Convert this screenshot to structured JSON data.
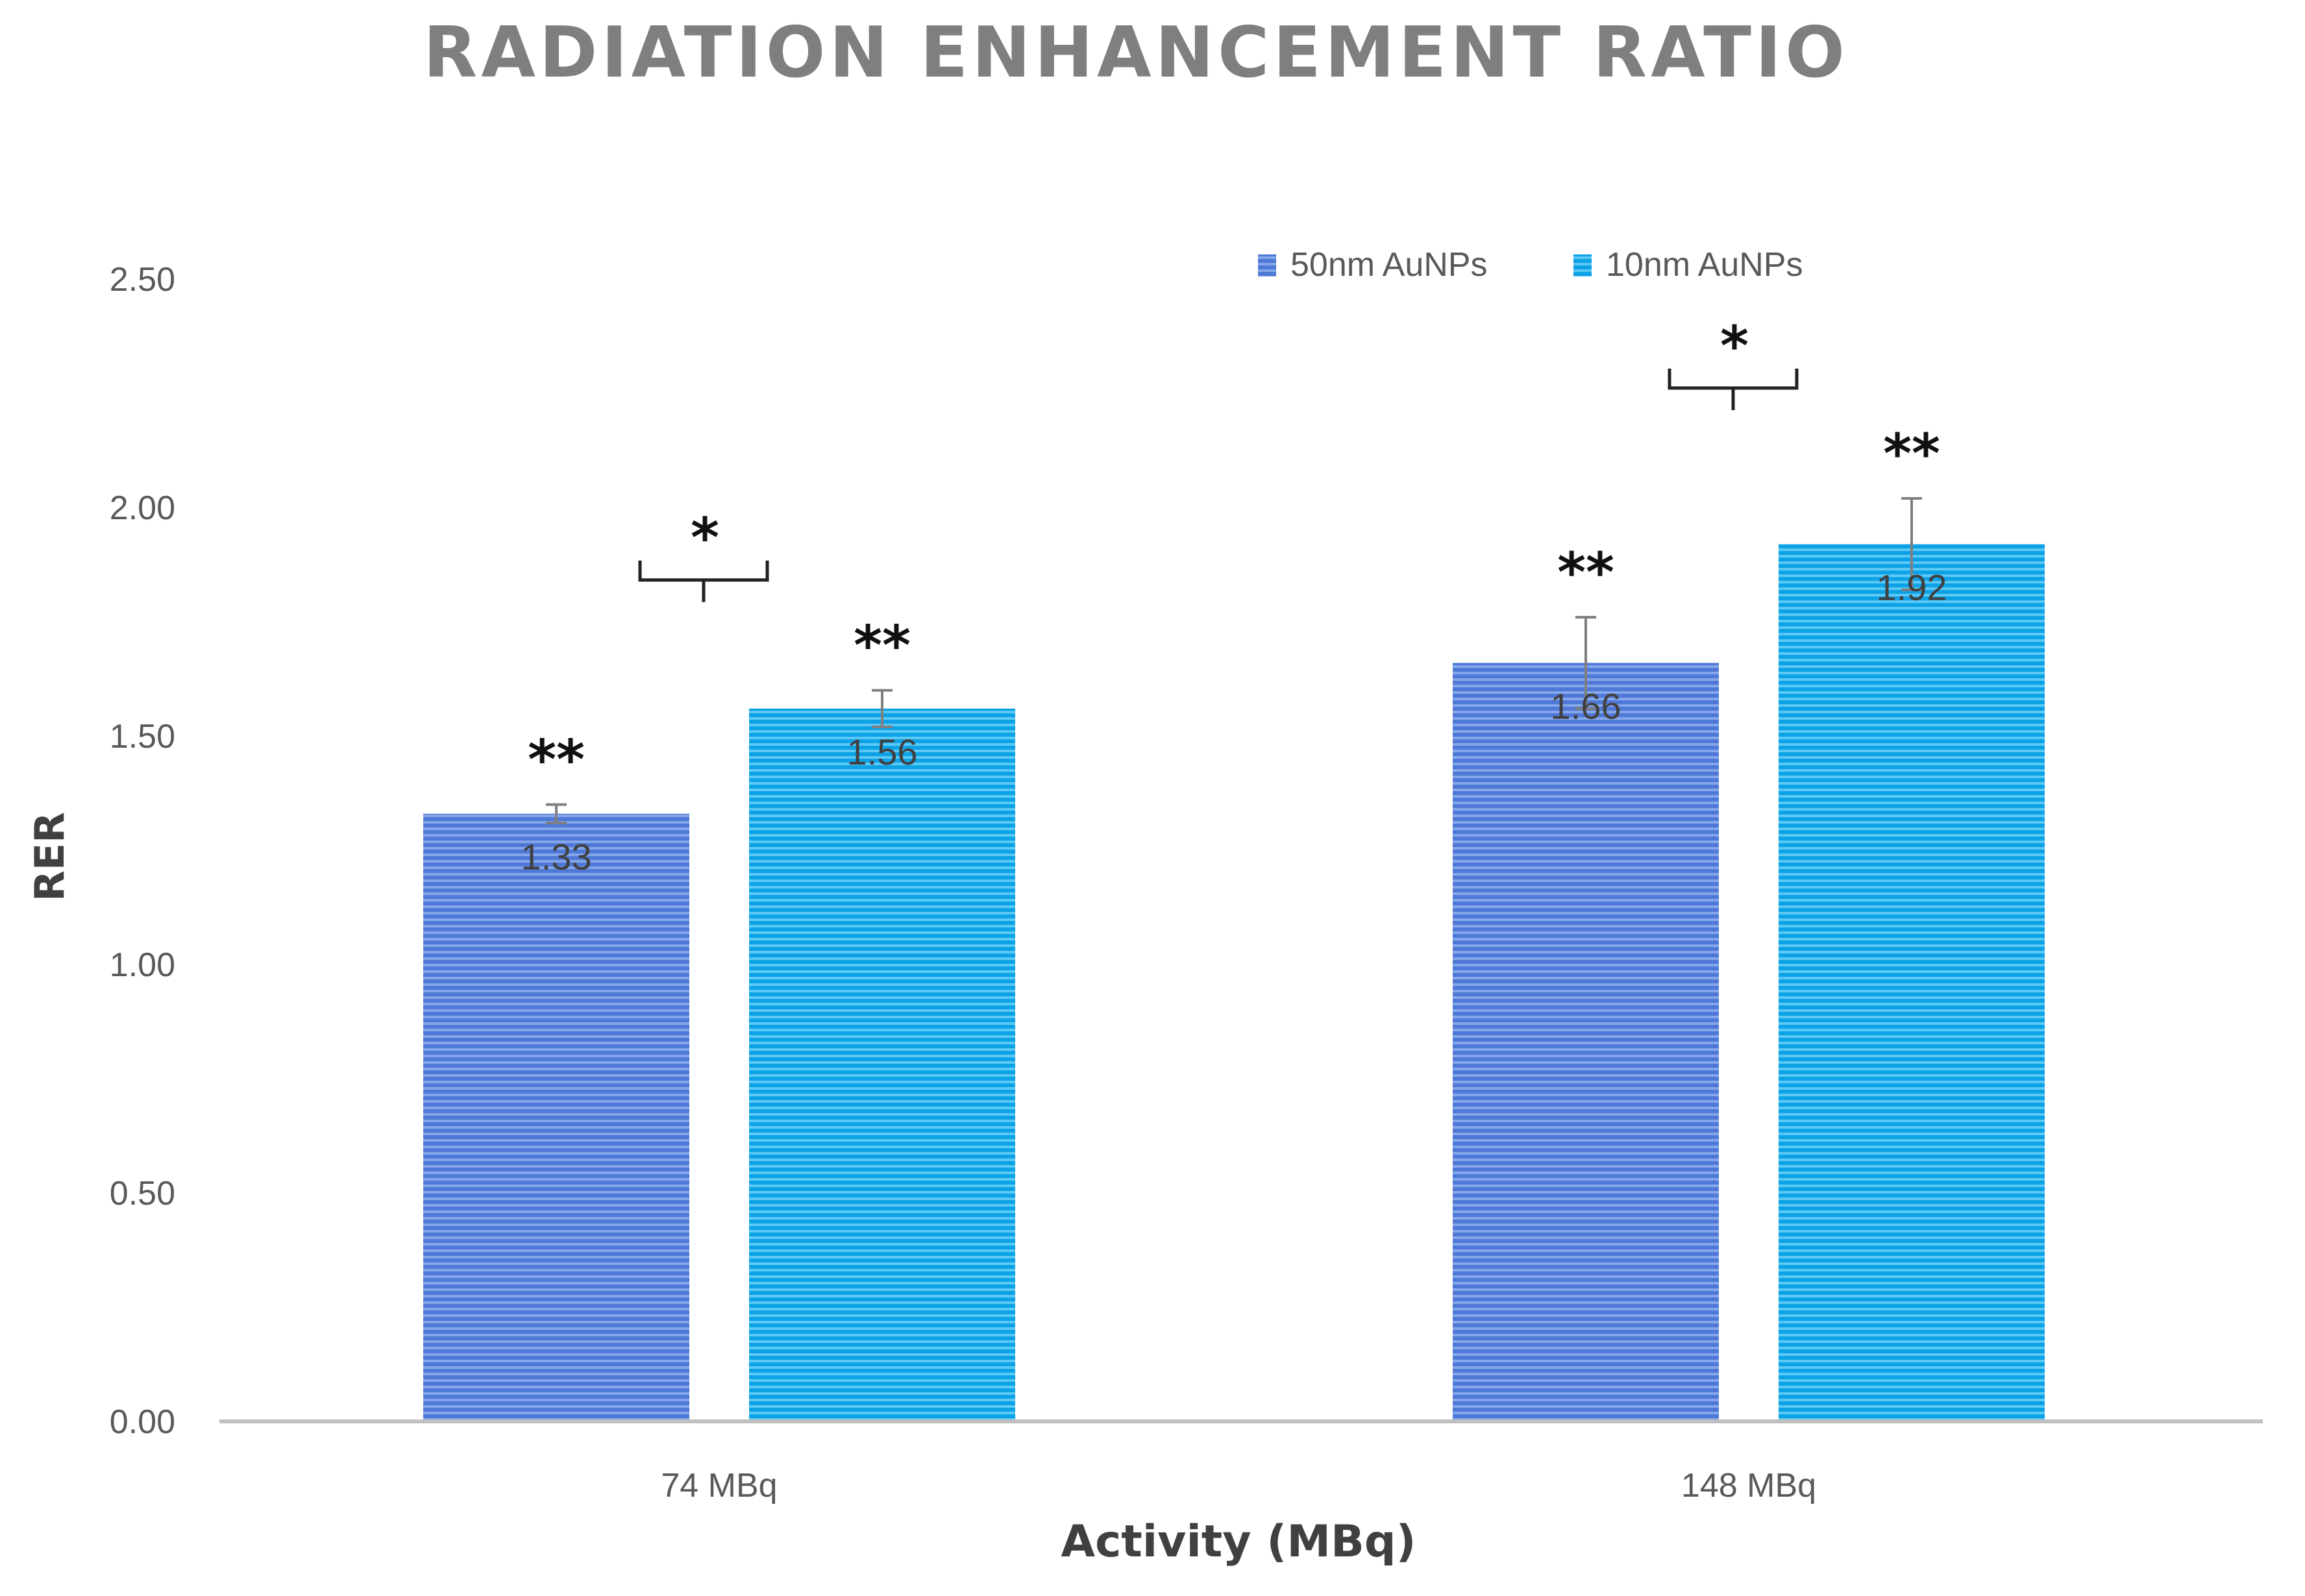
{
  "chart_data": {
    "type": "bar",
    "title": "RADIATION ENHANCEMENT RATIO",
    "xlabel": "Activity (MBq)",
    "ylabel": "RER",
    "categories": [
      "74 MBq",
      "148 MBq"
    ],
    "ylim": [
      0,
      2.5
    ],
    "yticks": [
      "0.00",
      "0.50",
      "1.00",
      "1.50",
      "2.00",
      "2.50"
    ],
    "grid": false,
    "legend_position": "top-right",
    "series": [
      {
        "name": "50nm AuNPs",
        "color": "#5b83db",
        "values": [
          1.33,
          1.66
        ],
        "labels": [
          "1.33",
          "1.66"
        ],
        "errors": [
          0.02,
          0.1
        ],
        "markers": [
          "**",
          "**"
        ]
      },
      {
        "name": "10nm AuNPs",
        "color": "#1faae8",
        "values": [
          1.56,
          1.92
        ],
        "labels": [
          "1.56",
          "1.92"
        ],
        "errors": [
          0.04,
          0.1
        ],
        "markers": [
          "**",
          "**"
        ]
      }
    ],
    "group_annotations": [
      "*",
      "*"
    ]
  }
}
